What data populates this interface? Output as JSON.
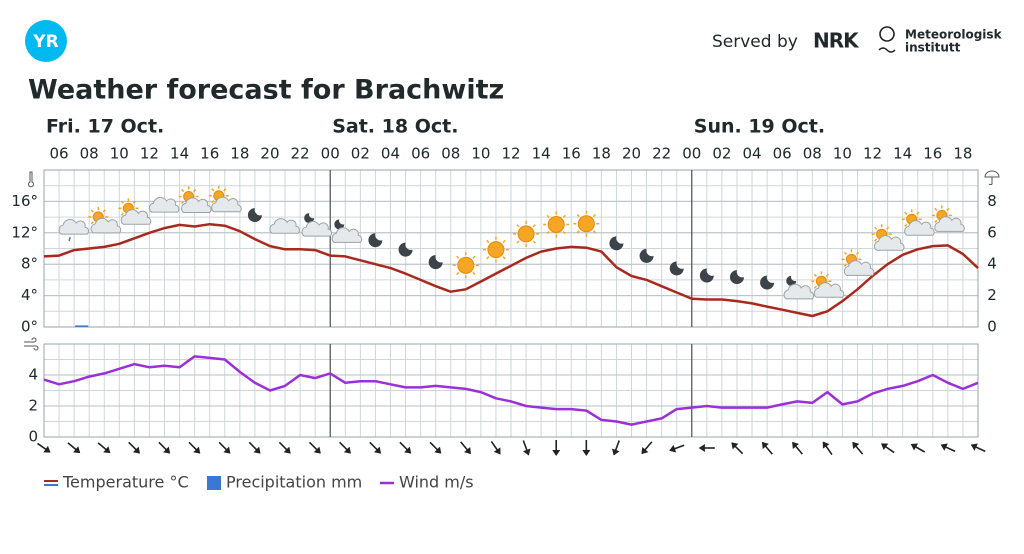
{
  "header": {
    "logo": "YR",
    "served_by": "Served by",
    "partner": "NRK",
    "institute": [
      "Meteorologisk",
      "institutt"
    ]
  },
  "chart_data": [
    {
      "type": "line",
      "title": "Weather forecast for Brachwitz",
      "days": [
        {
          "value": 5,
          "label": "Fri. 17 Oct."
        },
        {
          "value": 24,
          "label": "Sat. 18 Oct."
        },
        {
          "value": 48,
          "label": "Sun. 19 Oct."
        }
      ],
      "x": [
        5,
        6,
        7,
        8,
        9,
        10,
        11,
        12,
        13,
        14,
        15,
        16,
        17,
        18,
        19,
        20,
        21,
        22,
        23,
        24,
        25,
        26,
        27,
        28,
        29,
        30,
        31,
        32,
        33,
        34,
        35,
        36,
        37,
        38,
        39,
        40,
        41,
        42,
        43,
        44,
        45,
        46,
        47,
        48,
        49,
        50,
        51,
        52,
        53,
        54,
        55,
        56,
        57,
        58,
        59,
        60,
        61,
        62,
        63,
        64,
        65,
        66,
        67
      ],
      "xlim": [
        5,
        67
      ],
      "xticks": [
        {
          "value": 6,
          "label": "06"
        },
        {
          "value": 8,
          "label": "08"
        },
        {
          "value": 10,
          "label": "10"
        },
        {
          "value": 12,
          "label": "12"
        },
        {
          "value": 14,
          "label": "14"
        },
        {
          "value": 16,
          "label": "16"
        },
        {
          "value": 18,
          "label": "18"
        },
        {
          "value": 20,
          "label": "20"
        },
        {
          "value": 22,
          "label": "22"
        },
        {
          "value": 24,
          "label": "00"
        },
        {
          "value": 26,
          "label": "02"
        },
        {
          "value": 28,
          "label": "04"
        },
        {
          "value": 30,
          "label": "06"
        },
        {
          "value": 32,
          "label": "08"
        },
        {
          "value": 34,
          "label": "10"
        },
        {
          "value": 36,
          "label": "12"
        },
        {
          "value": 38,
          "label": "14"
        },
        {
          "value": 40,
          "label": "16"
        },
        {
          "value": 42,
          "label": "18"
        },
        {
          "value": 44,
          "label": "20"
        },
        {
          "value": 46,
          "label": "22"
        },
        {
          "value": 48,
          "label": "00"
        },
        {
          "value": 50,
          "label": "02"
        },
        {
          "value": 52,
          "label": "04"
        },
        {
          "value": 54,
          "label": "06"
        },
        {
          "value": 56,
          "label": "08"
        },
        {
          "value": 58,
          "label": "10"
        },
        {
          "value": 60,
          "label": "12"
        },
        {
          "value": 62,
          "label": "14"
        },
        {
          "value": 64,
          "label": "16"
        },
        {
          "value": 66,
          "label": "18"
        }
      ],
      "ylim": [
        0,
        20
      ],
      "yticks": [
        {
          "value": 0,
          "label": "0°"
        },
        {
          "value": 4,
          "label": "4°"
        },
        {
          "value": 8,
          "label": "8°"
        },
        {
          "value": 12,
          "label": "12°"
        },
        {
          "value": 16,
          "label": "16°"
        }
      ],
      "y2lim": [
        0,
        10
      ],
      "y2ticks": [
        0,
        2,
        4,
        6,
        8
      ],
      "grid": true,
      "series": [
        {
          "name": "Temperature °C",
          "color": "#a8291e",
          "values": [
            9.0,
            9.1,
            9.8,
            10.0,
            10.2,
            10.6,
            11.3,
            12.0,
            12.6,
            13.0,
            12.8,
            13.1,
            12.9,
            12.2,
            11.2,
            10.3,
            9.9,
            9.9,
            9.8,
            9.1,
            9.0,
            8.5,
            8.0,
            7.5,
            6.8,
            6.0,
            5.2,
            4.5,
            4.8,
            5.8,
            6.8,
            7.8,
            8.8,
            9.6,
            10.0,
            10.2,
            10.1,
            9.6,
            7.6,
            6.5,
            6.0,
            5.2,
            4.4,
            3.6,
            3.5,
            3.5,
            3.3,
            3.0,
            2.6,
            2.2,
            1.8,
            1.4,
            2.0,
            3.3,
            4.8,
            6.5,
            8.0,
            9.2,
            9.9,
            10.3,
            10.4,
            9.3,
            7.5
          ]
        },
        {
          "name": "Precipitation mm",
          "color": "#3a78d4",
          "type": "bar",
          "axis": "y2",
          "x": [
            7
          ],
          "values": [
            0.1
          ]
        }
      ]
    },
    {
      "type": "line",
      "x": [
        5,
        6,
        7,
        8,
        9,
        10,
        11,
        12,
        13,
        14,
        15,
        16,
        17,
        18,
        19,
        20,
        21,
        22,
        23,
        24,
        25,
        26,
        27,
        28,
        29,
        30,
        31,
        32,
        33,
        34,
        35,
        36,
        37,
        38,
        39,
        40,
        41,
        42,
        43,
        44,
        45,
        46,
        47,
        48,
        49,
        50,
        51,
        52,
        53,
        54,
        55,
        56,
        57,
        58,
        59,
        60,
        61,
        62,
        63,
        64,
        65,
        66,
        67
      ],
      "xlim": [
        5,
        67
      ],
      "ylim": [
        0,
        6
      ],
      "yticks": [
        0,
        2,
        4
      ],
      "grid": true,
      "series": [
        {
          "name": "Wind m/s",
          "color": "#9b30d9",
          "values": [
            3.7,
            3.4,
            3.6,
            3.9,
            4.1,
            4.4,
            4.7,
            4.5,
            4.6,
            4.5,
            5.2,
            5.1,
            5.0,
            4.2,
            3.5,
            3.0,
            3.3,
            4.0,
            3.8,
            4.1,
            3.5,
            3.6,
            3.6,
            3.4,
            3.2,
            3.2,
            3.3,
            3.2,
            3.1,
            2.9,
            2.5,
            2.3,
            2.0,
            1.9,
            1.8,
            1.8,
            1.7,
            1.1,
            1.0,
            0.8,
            1.0,
            1.2,
            1.8,
            1.9,
            2.0,
            1.9,
            1.9,
            1.9,
            1.9,
            2.1,
            2.3,
            2.2,
            2.9,
            2.1,
            2.3,
            2.8,
            3.1,
            3.3,
            3.6,
            4.0,
            3.5,
            3.1,
            3.5
          ]
        }
      ]
    }
  ]
}
